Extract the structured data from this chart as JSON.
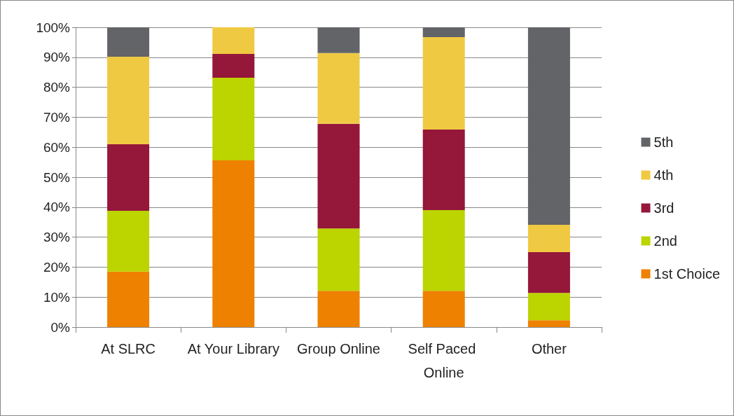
{
  "chart_data": {
    "type": "bar",
    "stacked": true,
    "categories": [
      "At SLRC",
      "At Your Library",
      "Group Online",
      "Self Paced Online",
      "Other"
    ],
    "series": [
      {
        "name": "1st Choice",
        "color": "#ee8100",
        "values": [
          18.5,
          55.6,
          12.1,
          12.1,
          2.3
        ]
      },
      {
        "name": "2nd",
        "color": "#bcd400",
        "values": [
          20.3,
          27.6,
          20.8,
          26.9,
          9.1
        ]
      },
      {
        "name": "3rd",
        "color": "#95173a",
        "values": [
          22.2,
          7.9,
          34.9,
          26.9,
          13.6
        ]
      },
      {
        "name": "4th",
        "color": "#f0c942",
        "values": [
          29.2,
          8.9,
          23.6,
          30.8,
          9.1
        ]
      },
      {
        "name": "5th",
        "color": "#636468",
        "values": [
          9.8,
          0,
          8.6,
          3.3,
          65.9
        ]
      }
    ],
    "ylim": [
      0,
      100
    ],
    "yticks": [
      {
        "value": 0,
        "label": "0%"
      },
      {
        "value": 10,
        "label": "10%"
      },
      {
        "value": 20,
        "label": "20%"
      },
      {
        "value": 30,
        "label": "30%"
      },
      {
        "value": 40,
        "label": "40%"
      },
      {
        "value": 50,
        "label": "50%"
      },
      {
        "value": 60,
        "label": "60%"
      },
      {
        "value": 70,
        "label": "70%"
      },
      {
        "value": 80,
        "label": "80%"
      },
      {
        "value": 90,
        "label": "90%"
      },
      {
        "value": 100,
        "label": "100%"
      }
    ],
    "grid": "y",
    "legend": "right"
  }
}
